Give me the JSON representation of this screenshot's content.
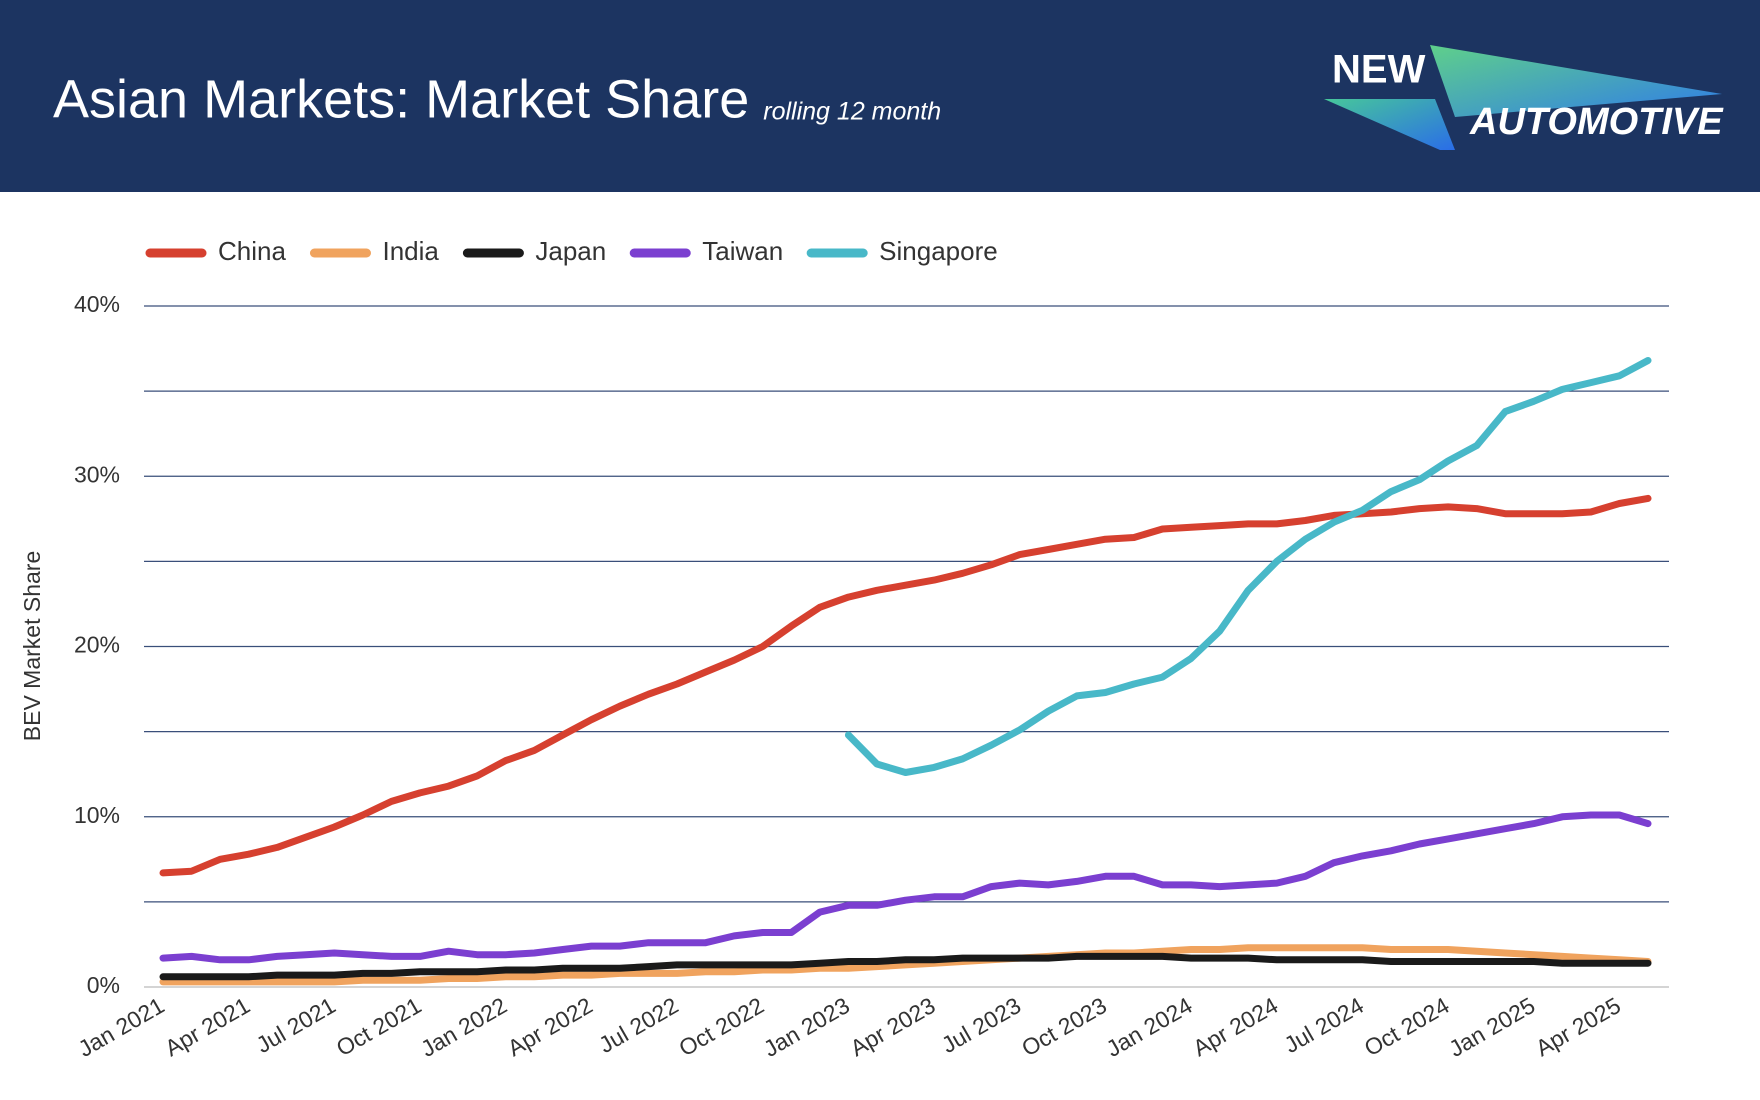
{
  "logo": {
    "line1": "NEW",
    "line2": "AUTOMOTIVE"
  },
  "chart_data": {
    "type": "line",
    "title": "Asian Markets: Market Share",
    "subtitle": "rolling 12 month",
    "y_label": "BEV Market Share",
    "legend": "top-left",
    "grid": true,
    "categories": [
      "Jan 2021",
      null,
      null,
      "Apr 2021",
      null,
      null,
      "Jul 2021",
      null,
      null,
      "Oct 2021",
      null,
      null,
      "Jan 2022",
      null,
      null,
      "Apr 2022",
      null,
      null,
      "Jul 2022",
      null,
      null,
      "Oct 2022",
      null,
      null,
      "Jan 2023",
      null,
      null,
      "Apr 2023",
      null,
      null,
      "Jul 2023",
      null,
      null,
      "Oct 2023",
      null,
      null,
      "Jan 2024",
      null,
      null,
      "Apr 2024",
      null,
      null,
      "Jul 2024",
      null,
      null,
      "Oct 2024",
      null,
      null,
      "Jan 2025",
      null,
      null,
      "Apr 2025",
      null
    ],
    "ylim": [
      0,
      40
    ],
    "yticks": [
      {
        "value": 0,
        "label": "0%"
      },
      {
        "value": 10,
        "label": "10%"
      },
      {
        "value": 20,
        "label": "20%"
      },
      {
        "value": 30,
        "label": "30%"
      },
      {
        "value": 40,
        "label": "40%"
      }
    ],
    "minor_yticks": [
      5,
      15,
      25,
      35
    ],
    "series": [
      {
        "name": "China",
        "color": "#d6402f",
        "values": [
          6.7,
          6.8,
          7.5,
          7.8,
          8.2,
          8.8,
          9.4,
          10.1,
          10.9,
          11.4,
          11.8,
          12.4,
          13.3,
          13.9,
          14.8,
          15.7,
          16.5,
          17.2,
          17.8,
          18.5,
          19.2,
          20.0,
          21.2,
          22.3,
          22.9,
          23.3,
          23.6,
          23.9,
          24.3,
          24.8,
          25.4,
          25.7,
          26.0,
          26.3,
          26.4,
          26.9,
          27.0,
          27.1,
          27.2,
          27.2,
          27.4,
          27.7,
          27.8,
          27.9,
          28.1,
          28.2,
          28.1,
          27.8,
          27.8,
          27.8,
          27.9,
          28.4,
          28.7
        ]
      },
      {
        "name": "India",
        "color": "#f0a35e",
        "values": [
          0.3,
          0.3,
          0.3,
          0.3,
          0.3,
          0.3,
          0.3,
          0.4,
          0.4,
          0.4,
          0.5,
          0.5,
          0.6,
          0.6,
          0.7,
          0.7,
          0.8,
          0.8,
          0.8,
          0.9,
          0.9,
          1.0,
          1.0,
          1.1,
          1.1,
          1.2,
          1.3,
          1.4,
          1.5,
          1.6,
          1.7,
          1.8,
          1.9,
          2.0,
          2.0,
          2.1,
          2.2,
          2.2,
          2.3,
          2.3,
          2.3,
          2.3,
          2.3,
          2.2,
          2.2,
          2.2,
          2.1,
          2.0,
          1.9,
          1.8,
          1.7,
          1.6,
          1.5
        ]
      },
      {
        "name": "Japan",
        "color": "#1a1a1a",
        "values": [
          0.6,
          0.6,
          0.6,
          0.6,
          0.7,
          0.7,
          0.7,
          0.8,
          0.8,
          0.9,
          0.9,
          0.9,
          1.0,
          1.0,
          1.1,
          1.1,
          1.1,
          1.2,
          1.3,
          1.3,
          1.3,
          1.3,
          1.3,
          1.4,
          1.5,
          1.5,
          1.6,
          1.6,
          1.7,
          1.7,
          1.7,
          1.7,
          1.8,
          1.8,
          1.8,
          1.8,
          1.7,
          1.7,
          1.7,
          1.6,
          1.6,
          1.6,
          1.6,
          1.5,
          1.5,
          1.5,
          1.5,
          1.5,
          1.5,
          1.4,
          1.4,
          1.4,
          1.4
        ]
      },
      {
        "name": "Taiwan",
        "color": "#7b3fd0",
        "values": [
          1.7,
          1.8,
          1.6,
          1.6,
          1.8,
          1.9,
          2.0,
          1.9,
          1.8,
          1.8,
          2.1,
          1.9,
          1.9,
          2.0,
          2.2,
          2.4,
          2.4,
          2.6,
          2.6,
          2.6,
          3.0,
          3.2,
          3.2,
          4.4,
          4.8,
          4.8,
          5.1,
          5.3,
          5.3,
          5.9,
          6.1,
          6.0,
          6.2,
          6.5,
          6.5,
          6.0,
          6.0,
          5.9,
          6.0,
          6.1,
          6.5,
          7.3,
          7.7,
          8.0,
          8.4,
          8.7,
          9.0,
          9.3,
          9.6,
          10.0,
          10.1,
          10.1,
          9.6
        ]
      },
      {
        "name": "Singapore",
        "color": "#48b8c8",
        "values": [
          null,
          null,
          null,
          null,
          null,
          null,
          null,
          null,
          null,
          null,
          null,
          null,
          null,
          null,
          null,
          null,
          null,
          null,
          null,
          null,
          null,
          null,
          null,
          null,
          14.8,
          13.1,
          12.6,
          12.9,
          13.4,
          14.2,
          15.1,
          16.2,
          17.1,
          17.3,
          17.8,
          18.2,
          19.3,
          20.9,
          23.3,
          25.0,
          26.3,
          27.3,
          28.0,
          29.1,
          29.8,
          30.9,
          31.8,
          33.8,
          34.4,
          35.1,
          35.5,
          35.9,
          36.8
        ]
      }
    ]
  }
}
